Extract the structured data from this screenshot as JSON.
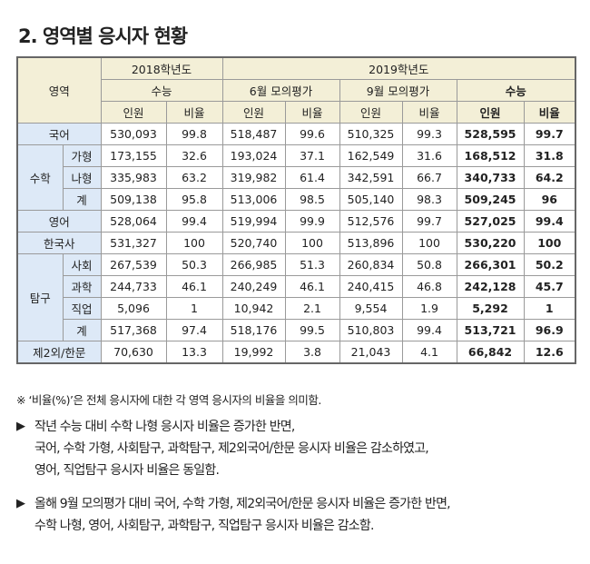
{
  "title": "2. 영역별 응시자 현황",
  "header": {
    "area": "영역",
    "y2018": "2018학년도",
    "y2019": "2019학년도",
    "suneung": "수능",
    "june": "6월 모의평가",
    "sept": "9월 모의평가",
    "suneung2019": "수능",
    "count": "인원",
    "ratio": "비율"
  },
  "rows": {
    "korean": {
      "label": "국어",
      "v": [
        "530,093",
        "99.8",
        "518,487",
        "99.6",
        "510,325",
        "99.3",
        "528,595",
        "99.7"
      ]
    },
    "math": {
      "label": "수학"
    },
    "math_ga": {
      "label": "가형",
      "v": [
        "173,155",
        "32.6",
        "193,024",
        "37.1",
        "162,549",
        "31.6",
        "168,512",
        "31.8"
      ]
    },
    "math_na": {
      "label": "나형",
      "v": [
        "335,983",
        "63.2",
        "319,982",
        "61.4",
        "342,591",
        "66.7",
        "340,733",
        "64.2"
      ]
    },
    "math_sum": {
      "label": "계",
      "v": [
        "509,138",
        "95.8",
        "513,006",
        "98.5",
        "505,140",
        "98.3",
        "509,245",
        "96"
      ]
    },
    "english": {
      "label": "영어",
      "v": [
        "528,064",
        "99.4",
        "519,994",
        "99.9",
        "512,576",
        "99.7",
        "527,025",
        "99.4"
      ]
    },
    "history": {
      "label": "한국사",
      "v": [
        "531,327",
        "100",
        "520,740",
        "100",
        "513,896",
        "100",
        "530,220",
        "100"
      ]
    },
    "inquiry": {
      "label": "탐구"
    },
    "social": {
      "label": "사회",
      "v": [
        "267,539",
        "50.3",
        "266,985",
        "51.3",
        "260,834",
        "50.8",
        "266,301",
        "50.2"
      ]
    },
    "science": {
      "label": "과학",
      "v": [
        "244,733",
        "46.1",
        "240,249",
        "46.1",
        "240,415",
        "46.8",
        "242,128",
        "45.7"
      ]
    },
    "vocational": {
      "label": "직업",
      "v": [
        "5,096",
        "1",
        "10,942",
        "2.1",
        "9,554",
        "1.9",
        "5,292",
        "1"
      ]
    },
    "inquiry_sum": {
      "label": "계",
      "v": [
        "517,368",
        "97.4",
        "518,176",
        "99.5",
        "510,803",
        "99.4",
        "513,721",
        "96.9"
      ]
    },
    "second_lang": {
      "label": "제2외/한문",
      "v": [
        "70,630",
        "13.3",
        "19,992",
        "3.8",
        "21,043",
        "4.1",
        "66,842",
        "12.6"
      ]
    }
  },
  "note": "※ ‘비율(%)’은 전체 응시자에 대한 각 영역 응시자의 비율을 의미함.",
  "bullets": [
    {
      "arrow": "▶",
      "lines": [
        "작년 수능 대비 수학 나형 응시자 비율은 증가한 반면,",
        "국어, 수학 가형, 사회탐구, 과학탐구, 제2외국어/한문 응시자 비율은 감소하였고,",
        "영어, 직업탐구 응시자 비율은 동일함."
      ]
    },
    {
      "arrow": "▶",
      "lines": [
        "올해 9월 모의평가 대비 국어, 수학 가형, 제2외국어/한문 응시자 비율은 증가한 반면,",
        "수학 나형, 영어, 사회탐구, 과학탐구, 직업탐구 응시자 비율은 감소함."
      ]
    }
  ]
}
